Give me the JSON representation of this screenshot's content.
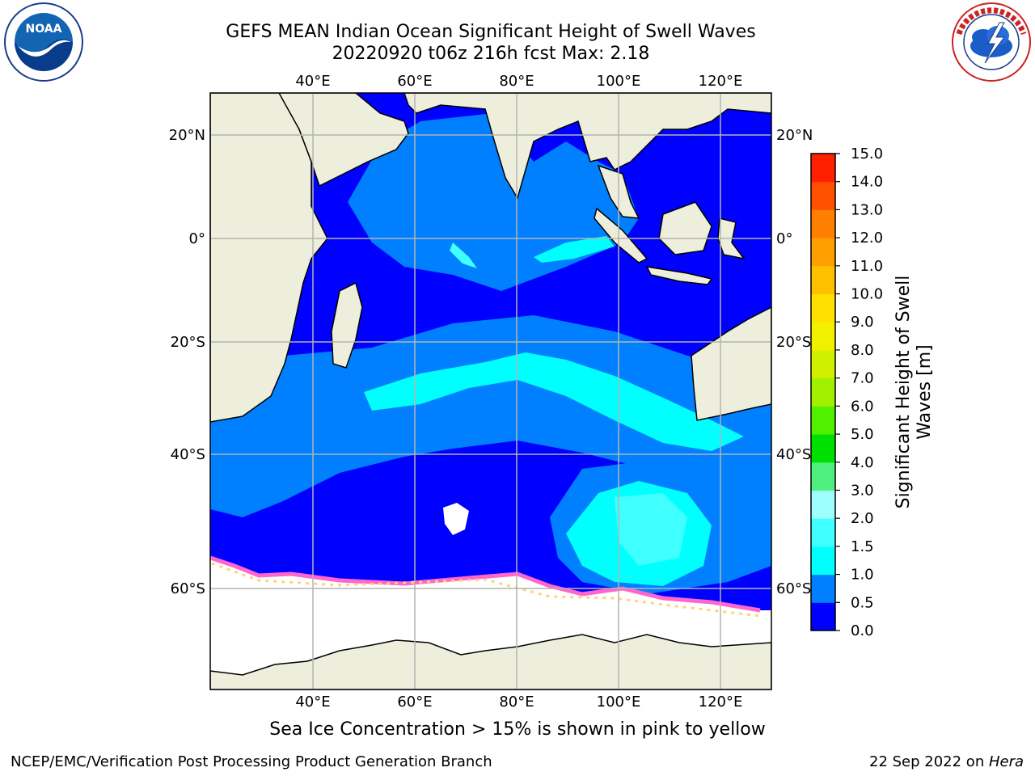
{
  "title_line1": "GEFS MEAN Indian Ocean Significant Height of Swell Waves",
  "title_line2": "20220920 t06z 216h fcst   Max: 2.18",
  "lon_labels": [
    "40°E",
    "60°E",
    "80°E",
    "100°E",
    "120°E"
  ],
  "lat_labels": [
    "20°N",
    "0°",
    "20°S",
    "40°S",
    "60°S"
  ],
  "colorbar": {
    "title_line1": "Significant Height of Swell",
    "title_line2": "Waves [m]",
    "ticks": [
      "0.0",
      "0.5",
      "1.0",
      "1.5",
      "2.0",
      "3.0",
      "4.0",
      "5.0",
      "6.0",
      "7.0",
      "8.0",
      "9.0",
      "10.0",
      "11.0",
      "12.0",
      "13.0",
      "14.0",
      "15.0"
    ],
    "colors": [
      "#0000ff",
      "#0080ff",
      "#00ffff",
      "#40ffff",
      "#9fffff",
      "#50f080",
      "#00e000",
      "#50f000",
      "#a0f000",
      "#d0f000",
      "#f0f000",
      "#ffe000",
      "#ffc000",
      "#ffa000",
      "#ff8000",
      "#ff5000",
      "#ff2000"
    ]
  },
  "caption": "Sea Ice Concentration > 15% is shown in pink to yellow",
  "footer_left": "NCEP/EMC/Verification Post Processing Product Generation Branch",
  "footer_right_prefix": "22 Sep 2022 on ",
  "footer_right_host": "Hera",
  "logos": {
    "left": "noaa-logo",
    "right": "nws-logo"
  },
  "colors": {
    "land": "#eeeedd",
    "ocean_low": "#0000ff",
    "ocean_mid": "#0080ff",
    "ocean_high": "#00ffff",
    "ice": "#ff66cc"
  }
}
